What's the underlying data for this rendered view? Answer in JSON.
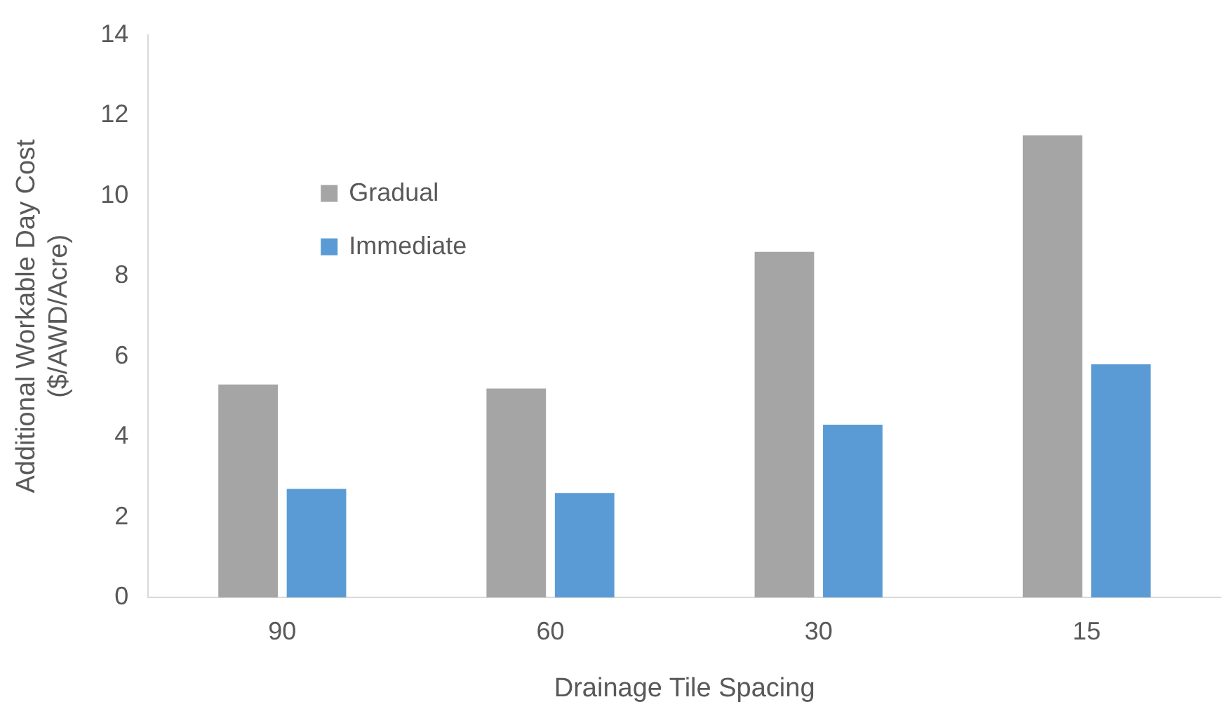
{
  "chart_data": {
    "type": "bar",
    "xlabel": "Drainage Tile Spacing",
    "ylabel": "Additional Workable Day Cost\n($/AWD/Acre)",
    "categories": [
      "90",
      "60",
      "30",
      "15"
    ],
    "series": [
      {
        "name": "Gradual",
        "color": "#a5a5a5",
        "values": [
          5.3,
          5.2,
          8.6,
          11.5
        ]
      },
      {
        "name": "Immediate",
        "color": "#5b9bd5",
        "values": [
          2.7,
          2.6,
          4.3,
          5.8
        ]
      }
    ],
    "ylim": [
      0,
      14
    ],
    "yticks": [
      0,
      2,
      4,
      6,
      8,
      10,
      12,
      14
    ],
    "grid": false,
    "legend": "top left"
  }
}
